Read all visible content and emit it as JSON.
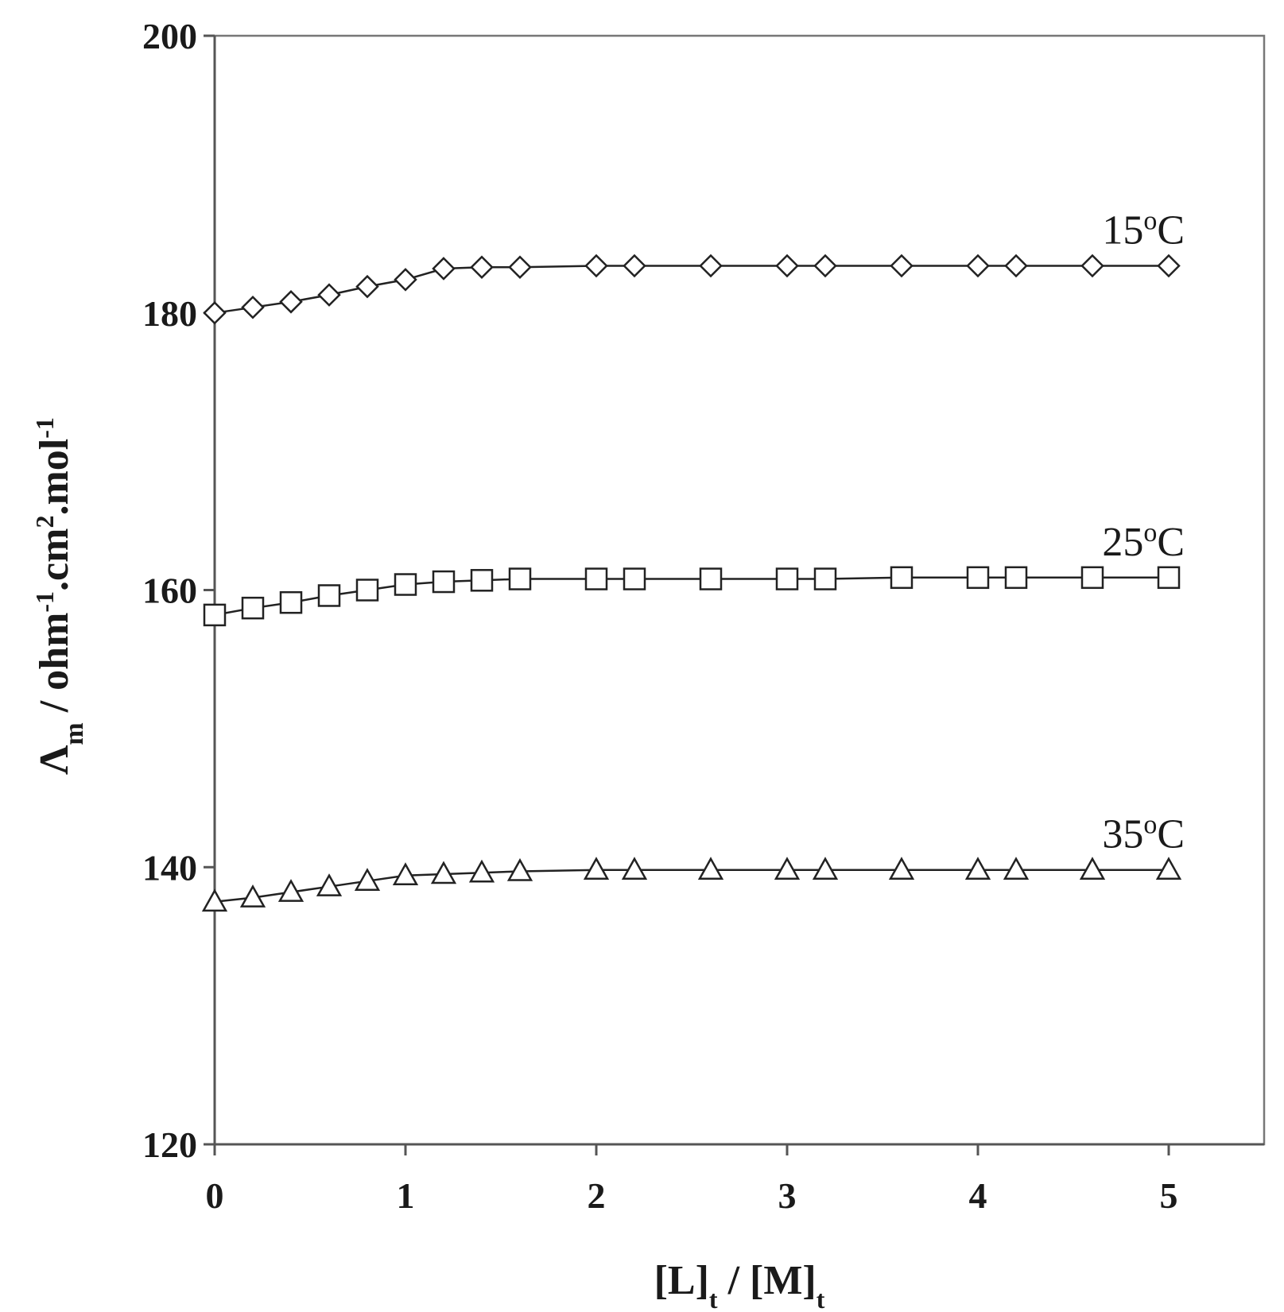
{
  "chart_data": {
    "type": "line",
    "xlabel": {
      "parts": [
        {
          "text": "[L]",
          "sub": false
        },
        {
          "text": "t",
          "sub": true
        },
        {
          "text": " / [M]",
          "sub": false
        },
        {
          "text": "t",
          "sub": true
        }
      ]
    },
    "ylabel": {
      "parts": [
        {
          "text": "Λ",
          "style": "normal"
        },
        {
          "text": "m",
          "style": "sub"
        },
        {
          "text": " / ohm",
          "style": "normal"
        },
        {
          "text": "-1",
          "style": "sup"
        },
        {
          "text": ".cm",
          "style": "normal"
        },
        {
          "text": "2",
          "style": "sup"
        },
        {
          "text": ".mol",
          "style": "normal"
        },
        {
          "text": "-1",
          "style": "sup"
        }
      ]
    },
    "xlim": [
      0,
      5.5
    ],
    "ylim": [
      120,
      200
    ],
    "xticks": [
      0,
      1,
      2,
      3,
      4,
      5
    ],
    "yticks": [
      120,
      140,
      160,
      180,
      200
    ],
    "grid": false,
    "legend": "none",
    "series": [
      {
        "name": "15°C",
        "label_parts": [
          {
            "text": "15",
            "sup": false
          },
          {
            "text": "o",
            "sup": true
          },
          {
            "text": "C",
            "sup": false
          }
        ],
        "marker": "diamond",
        "x": [
          0,
          0.2,
          0.4,
          0.6,
          0.8,
          1.0,
          1.2,
          1.4,
          1.6,
          2.0,
          2.2,
          2.6,
          3.0,
          3.2,
          3.6,
          4.0,
          4.2,
          4.6,
          5.0
        ],
        "y": [
          180.0,
          180.4,
          180.8,
          181.3,
          181.9,
          182.4,
          183.2,
          183.3,
          183.3,
          183.4,
          183.4,
          183.4,
          183.4,
          183.4,
          183.4,
          183.4,
          183.4,
          183.4,
          183.4
        ]
      },
      {
        "name": "25°C",
        "label_parts": [
          {
            "text": "25",
            "sup": false
          },
          {
            "text": "o",
            "sup": true
          },
          {
            "text": "C",
            "sup": false
          }
        ],
        "marker": "square",
        "x": [
          0,
          0.2,
          0.4,
          0.6,
          0.8,
          1.0,
          1.2,
          1.4,
          1.6,
          2.0,
          2.2,
          2.6,
          3.0,
          3.2,
          3.6,
          4.0,
          4.2,
          4.6,
          5.0
        ],
        "y": [
          158.2,
          158.7,
          159.1,
          159.6,
          160.0,
          160.4,
          160.6,
          160.7,
          160.8,
          160.8,
          160.8,
          160.8,
          160.8,
          160.8,
          160.9,
          160.9,
          160.9,
          160.9,
          160.9
        ]
      },
      {
        "name": "35°C",
        "label_parts": [
          {
            "text": "35",
            "sup": false
          },
          {
            "text": "o",
            "sup": true
          },
          {
            "text": "C",
            "sup": false
          }
        ],
        "marker": "triangle",
        "x": [
          0,
          0.2,
          0.4,
          0.6,
          0.8,
          1.0,
          1.2,
          1.4,
          1.6,
          2.0,
          2.2,
          2.6,
          3.0,
          3.2,
          3.6,
          4.0,
          4.2,
          4.6,
          5.0
        ],
        "y": [
          137.5,
          137.8,
          138.2,
          138.6,
          139.0,
          139.4,
          139.5,
          139.6,
          139.7,
          139.8,
          139.8,
          139.8,
          139.8,
          139.8,
          139.8,
          139.8,
          139.8,
          139.8,
          139.8
        ]
      }
    ]
  }
}
